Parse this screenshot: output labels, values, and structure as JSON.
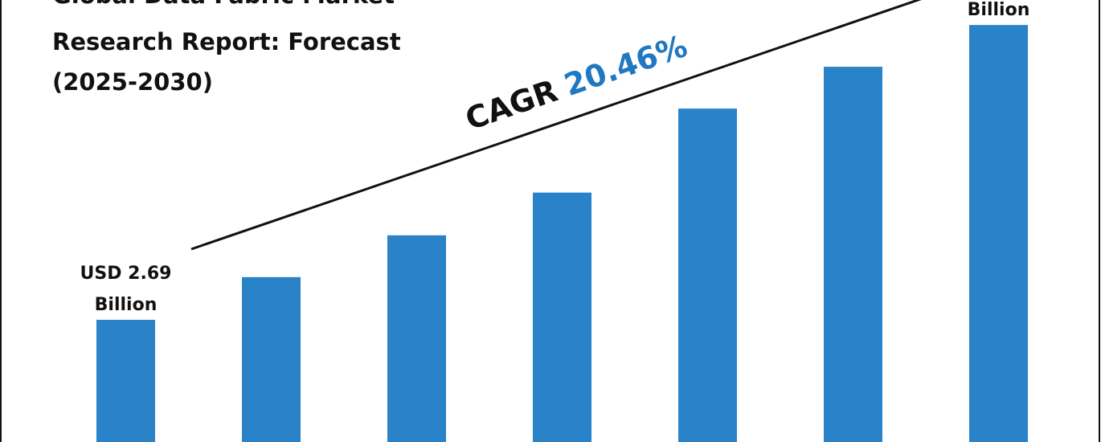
{
  "chart_data": {
    "type": "bar",
    "title": [
      "Global Data Fabric Market",
      "Research Report: Forecast",
      "(2025-2030)"
    ],
    "annotations": {
      "cagr_label": "CAGR",
      "cagr_value": "20.46%"
    },
    "categories": [
      null,
      null,
      null,
      null,
      null,
      null,
      null
    ],
    "values": [
      2.69,
      3.63,
      4.55,
      5.49,
      7.34,
      8.26,
      9.18
    ],
    "value_labels": [
      [
        "USD 2.69",
        "Billion"
      ],
      null,
      null,
      null,
      null,
      null,
      [
        "Billion"
      ]
    ],
    "color": "#2a83c8",
    "cagr_color": "#1f78c1",
    "ylim": [
      0,
      9.73
    ]
  }
}
